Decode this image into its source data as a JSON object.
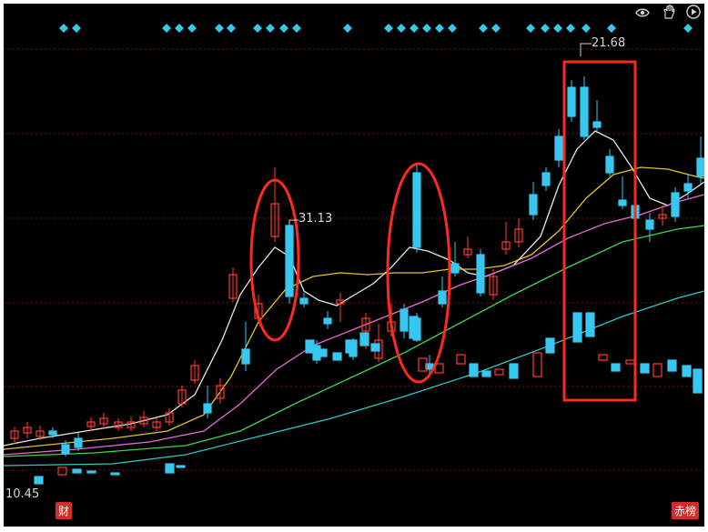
{
  "colors": {
    "up": "#ff3b30",
    "down": "#36c8f0",
    "mid_volume_up": "#ff3b30",
    "ma_white": "#e8e8e8",
    "ma_yellow": "#e6c22a",
    "ma_magenta": "#e66bd0",
    "ma_green": "#3dd64a",
    "ma_cyan": "#2ec7c7",
    "annotation": "#ff2a1f",
    "signal_diamond": "#36c8f0",
    "grid_red_dash": "#7a1414"
  },
  "toolbar": {
    "icons": [
      "eye-icon",
      "hand-icon",
      "play-icon"
    ]
  },
  "labels": {
    "high_label": "21.68",
    "mid_high_label": "31.13",
    "low_label": "10.45"
  },
  "tags": {
    "left": "财",
    "right": "赤榜"
  },
  "chart_data": {
    "type": "candlestick",
    "title": "",
    "y_top_scale": {
      "top": 35.0,
      "bottom": 9.0
    },
    "signal_diamonds_x_index": [
      3,
      4,
      9,
      10,
      11,
      13,
      14,
      16,
      17,
      18,
      20,
      23,
      24,
      25,
      26,
      27,
      28,
      31,
      32,
      34,
      35,
      36,
      37,
      38,
      43
    ]
  }
}
